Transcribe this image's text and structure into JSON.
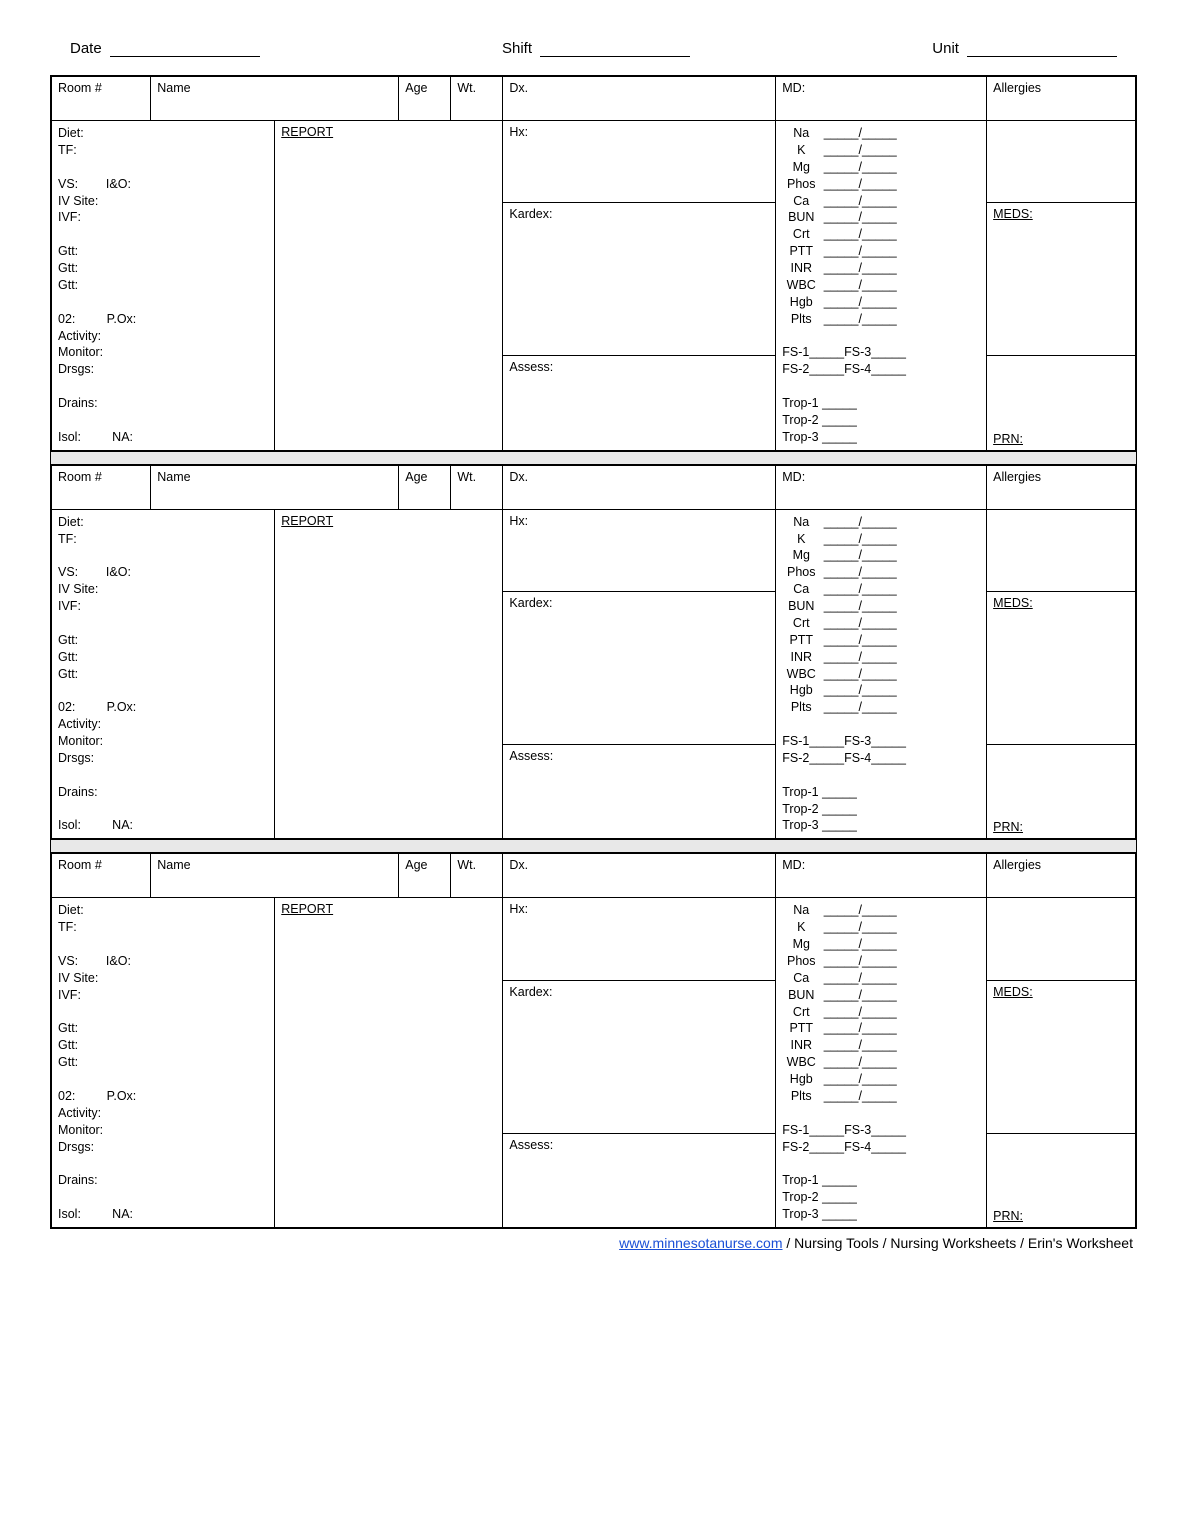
{
  "header": {
    "date_label": "Date",
    "shift_label": "Shift",
    "unit_label": "Unit"
  },
  "columns": {
    "room": "Room #",
    "name": "Name",
    "age": "Age",
    "wt": "Wt.",
    "dx": "Dx.",
    "md": "MD:",
    "allergies": "Allergies"
  },
  "left_fields": {
    "diet": "Diet:",
    "tf": "TF:",
    "vs": "VS:",
    "io": "I&O:",
    "ivsite": "IV Site:",
    "ivf": "IVF:",
    "gtt1": "Gtt:",
    "gtt2": "Gtt:",
    "gtt3": "Gtt:",
    "o2": "02:",
    "pox": "P.Ox:",
    "activity": "Activity:",
    "monitor": "Monitor:",
    "drsgs": "Drsgs:",
    "drains": "Drains:",
    "isol": "Isol:",
    "na": "NA:"
  },
  "report_label": "REPORT",
  "mid_fields": {
    "hx": "Hx:",
    "kardex": "Kardex:",
    "assess": "Assess:"
  },
  "labs": [
    "Na",
    "K",
    "Mg",
    "Phos",
    "Ca",
    "BUN",
    "Crt",
    "PTT",
    "INR",
    "WBC",
    "Hgb",
    "Plts"
  ],
  "lab_blank": "_____/_____",
  "fs": {
    "fs1": "FS-1_____",
    "fs2": "FS-2_____",
    "fs3": "FS-3_____",
    "fs4": "FS-4_____"
  },
  "trop": {
    "t1": "Trop-1 _____",
    "t2": "Trop-2 _____",
    "t3": "Trop-3 _____"
  },
  "right_fields": {
    "meds": "MEDS:",
    "prn": "PRN:"
  },
  "footer": {
    "link_text": "www.minnesotanurse.com",
    "rest": " / Nursing Tools / Nursing Worksheets / Erin's Worksheet"
  },
  "blocks": 3
}
